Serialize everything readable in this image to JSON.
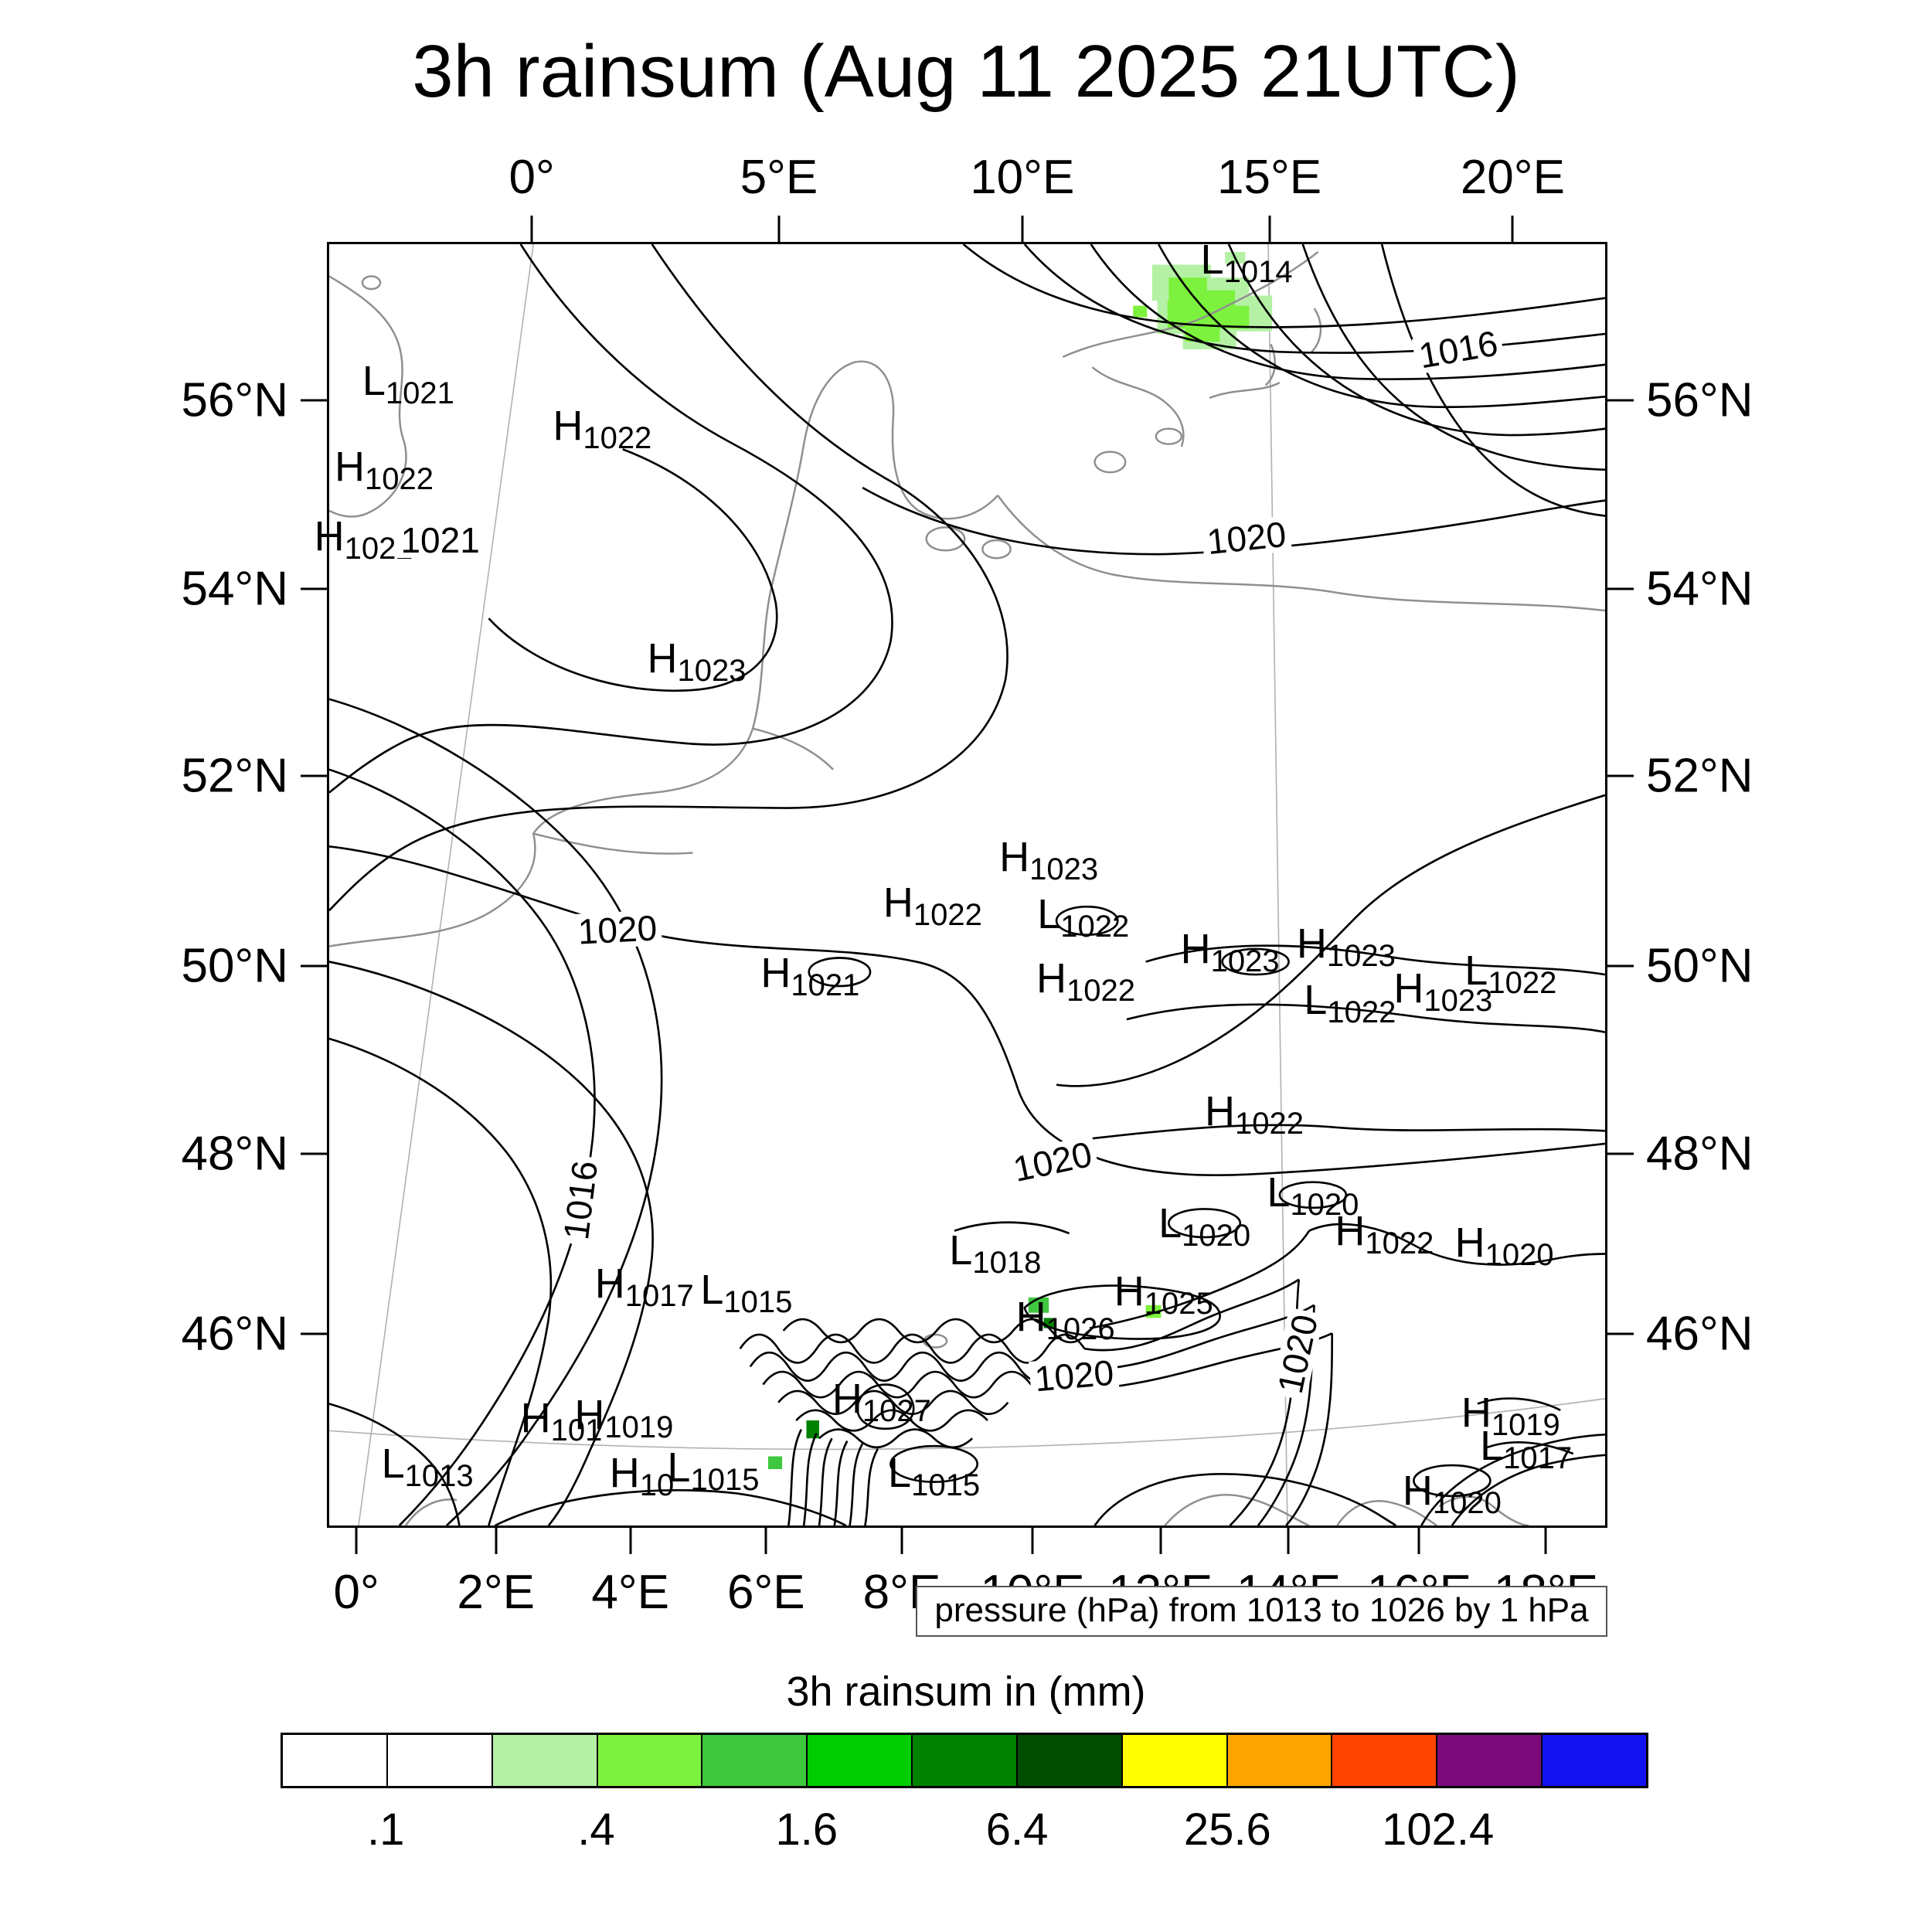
{
  "chart_data": {
    "type": "contour_map",
    "title": "3h rainsum (Aug 11 2025 21UTC)",
    "subtitle_caption": "pressure (hPa) from 1013 to 1026 by 1 hPa",
    "pressure_contours": {
      "variable": "pressure (hPa)",
      "min": 1013,
      "max": 1026,
      "interval_hPa": 1
    },
    "rain_colorbar": {
      "title": "3h rainsum in (mm)",
      "cell_colors": [
        "#ffffff",
        "#ffffff",
        "#b5f1a5",
        "#7df23e",
        "#3fc83f",
        "#00cc00",
        "#008200",
        "#004c00",
        "#ffff00",
        "#ffa500",
        "#ff4500",
        "#7c0a7c",
        "#1212f0"
      ],
      "tick_labels": [
        ".1",
        ".4",
        "1.6",
        "6.4",
        "25.6",
        "102.4"
      ],
      "tick_cell_boundaries": [
        1,
        3,
        5,
        7,
        9,
        11
      ]
    },
    "axes": {
      "top": [
        {
          "label": "0°",
          "pos": 16.0
        },
        {
          "label": "5°E",
          "pos": 35.3
        },
        {
          "label": "10°E",
          "pos": 54.3
        },
        {
          "label": "15°E",
          "pos": 73.6
        },
        {
          "label": "20°E",
          "pos": 92.6
        }
      ],
      "bottom": [
        {
          "label": "0°",
          "pos": 2.3
        },
        {
          "label": "2°E",
          "pos": 13.2
        },
        {
          "label": "4°E",
          "pos": 23.7
        },
        {
          "label": "6°E",
          "pos": 34.3
        },
        {
          "label": "8°E",
          "pos": 44.9
        },
        {
          "label": "10°E",
          "pos": 55.1
        },
        {
          "label": "12°E",
          "pos": 65.1
        },
        {
          "label": "14°E",
          "pos": 75.1
        },
        {
          "label": "16°E",
          "pos": 85.3
        },
        {
          "label": "18°E",
          "pos": 95.2
        }
      ],
      "left": [
        {
          "label": "56°N",
          "pos": 12.3
        },
        {
          "label": "54°N",
          "pos": 27.0
        },
        {
          "label": "52°N",
          "pos": 41.5
        },
        {
          "label": "50°N",
          "pos": 56.3
        },
        {
          "label": "48°N",
          "pos": 70.9
        },
        {
          "label": "46°N",
          "pos": 84.9
        }
      ],
      "right": [
        {
          "label": "56°N",
          "pos": 12.3
        },
        {
          "label": "54°N",
          "pos": 27.0
        },
        {
          "label": "52°N",
          "pos": 41.5
        },
        {
          "label": "50°N",
          "pos": 56.3
        },
        {
          "label": "48°N",
          "pos": 70.9
        },
        {
          "label": "46°N",
          "pos": 84.9
        }
      ]
    },
    "pressure_centers": [
      {
        "t": "L",
        "v": "1014",
        "x": 71.9,
        "y": 1.2
      },
      {
        "t": "L",
        "v": "1021",
        "x": 6.2,
        "y": 10.7
      },
      {
        "t": "H",
        "v": "1022",
        "x": 21.4,
        "y": 14.2
      },
      {
        "t": "H",
        "v": "1022",
        "x": 4.3,
        "y": 17.4
      },
      {
        "t": "H",
        "v": "1022",
        "x": 2.7,
        "y": 22.8
      },
      {
        "t": "H",
        "v": "1023",
        "x": 28.8,
        "y": 32.3
      },
      {
        "t": "H",
        "v": "1023",
        "x": 56.4,
        "y": 47.8
      },
      {
        "t": "H",
        "v": "1022",
        "x": 47.3,
        "y": 51.4
      },
      {
        "t": "L",
        "v": "1022",
        "x": 59.1,
        "y": 52.3
      },
      {
        "t": "H",
        "v": "1021",
        "x": 37.7,
        "y": 56.9
      },
      {
        "t": "H",
        "v": "1023",
        "x": 70.6,
        "y": 55.0
      },
      {
        "t": "H",
        "v": "1023",
        "x": 79.7,
        "y": 54.6
      },
      {
        "t": "L",
        "v": "1022",
        "x": 92.6,
        "y": 56.7
      },
      {
        "t": "H",
        "v": "1022",
        "x": 59.3,
        "y": 57.3
      },
      {
        "t": "L",
        "v": "1022",
        "x": 80.0,
        "y": 59.0
      },
      {
        "t": "H",
        "v": "1023",
        "x": 87.3,
        "y": 58.1
      },
      {
        "t": "H",
        "v": "1022",
        "x": 72.5,
        "y": 67.7
      },
      {
        "t": "L",
        "v": "1020",
        "x": 77.1,
        "y": 74.0
      },
      {
        "t": "L",
        "v": "1020",
        "x": 68.6,
        "y": 76.4
      },
      {
        "t": "H",
        "v": "1022",
        "x": 82.7,
        "y": 77.0
      },
      {
        "t": "H",
        "v": "1020",
        "x": 92.1,
        "y": 77.9
      },
      {
        "t": "H",
        "v": "1017",
        "x": 24.7,
        "y": 81.1
      },
      {
        "t": "L",
        "v": "1015",
        "x": 32.7,
        "y": 81.6
      },
      {
        "t": "L",
        "v": "1018",
        "x": 52.2,
        "y": 78.5
      },
      {
        "t": "H",
        "v": "1026",
        "x": 57.7,
        "y": 83.7
      },
      {
        "t": "H",
        "v": "1025",
        "x": 65.4,
        "y": 81.7
      },
      {
        "t": "H",
        "v": "101",
        "x": 18.2,
        "y": 91.6
      },
      {
        "t": "H",
        "v": "1019",
        "x": 23.1,
        "y": 91.4
      },
      {
        "t": "H",
        "v": "1027",
        "x": 43.3,
        "y": 90.1
      },
      {
        "t": "L",
        "v": "1013",
        "x": 7.7,
        "y": 95.2
      },
      {
        "t": "H",
        "v": "10",
        "x": 24.5,
        "y": 95.9
      },
      {
        "t": "L",
        "v": "1015",
        "x": 30.1,
        "y": 95.5
      },
      {
        "t": "L",
        "v": "1015",
        "x": 47.4,
        "y": 95.9
      },
      {
        "t": "H",
        "v": "1019",
        "x": 92.6,
        "y": 91.2
      },
      {
        "t": "L",
        "v": "1017",
        "x": 93.8,
        "y": 93.8
      },
      {
        "t": "H",
        "v": "1020",
        "x": 88.0,
        "y": 97.3
      }
    ],
    "contour_labels": [
      {
        "text": "1016",
        "x": 88.5,
        "y": 8.2,
        "rot": -10
      },
      {
        "text": "1020",
        "x": 71.9,
        "y": 22.9,
        "rot": -6
      },
      {
        "text": "1021",
        "x": 8.7,
        "y": 23.1,
        "rot": 0
      },
      {
        "text": "1020",
        "x": 22.6,
        "y": 53.5,
        "rot": -3
      },
      {
        "text": "1020",
        "x": 56.7,
        "y": 71.6,
        "rot": -12
      },
      {
        "text": "1016",
        "x": 19.7,
        "y": 74.6,
        "rot": -83
      },
      {
        "text": "1020",
        "x": 58.4,
        "y": 88.3,
        "rot": -5
      },
      {
        "text": "1020",
        "x": 75.9,
        "y": 86.6,
        "rot": -78
      }
    ]
  }
}
